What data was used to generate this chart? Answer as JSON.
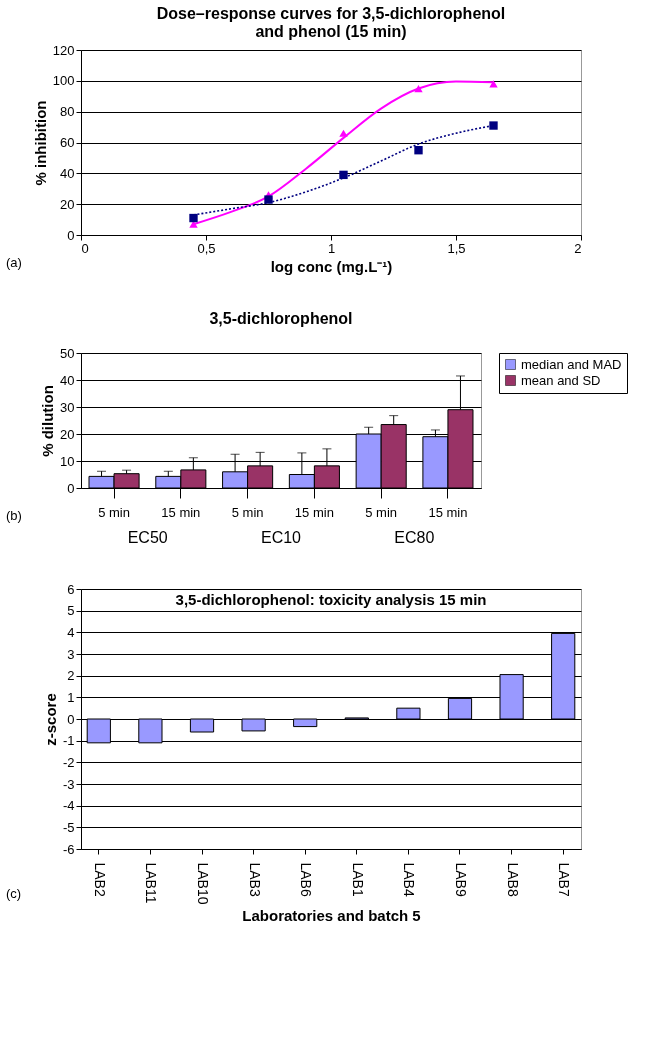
{
  "chart_data": [
    {
      "type": "scatter",
      "title": "Dose–response curves for 3,5-dichlorophenol and phenol (15 min)",
      "xlabel": "log conc (mg.L⁻¹)",
      "ylabel": "% inhibition",
      "annotations": [
        "(a)"
      ],
      "xlim": [
        0,
        2
      ],
      "xticks": [
        0,
        {
          "value": 0.5,
          "label": "0,5"
        },
        1,
        {
          "value": 1.5,
          "label": "1,5"
        },
        2
      ],
      "ylim": [
        0,
        120
      ],
      "yticks": [
        0,
        20,
        40,
        60,
        80,
        100,
        120
      ],
      "grid": "y",
      "series": [
        {
          "type": "scatter",
          "marker": "triangle",
          "color": "#ff00ff",
          "x": [
            0.45,
            0.75,
            1.05,
            1.35,
            1.65
          ],
          "values": [
            7,
            26,
            66,
            95,
            98
          ]
        },
        {
          "type": "scatter",
          "marker": "square",
          "color": "#000080",
          "x": [
            0.45,
            0.75,
            1.05,
            1.35,
            1.65
          ],
          "values": [
            11,
            23,
            39,
            55,
            71
          ]
        },
        {
          "type": "line",
          "line_style": "solid",
          "color": "#ff00ff",
          "x": [
            0.45,
            0.6,
            0.75,
            0.9,
            1.05,
            1.2,
            1.35,
            1.5,
            1.65
          ],
          "values": [
            7,
            15,
            25,
            43,
            63,
            82,
            95,
            99.5,
            99
          ]
        },
        {
          "type": "line",
          "line_style": "dotted",
          "color": "#000080",
          "x": [
            0.45,
            0.6,
            0.75,
            0.9,
            1.05,
            1.2,
            1.35,
            1.5,
            1.65
          ],
          "values": [
            13,
            17,
            21,
            28,
            37,
            48,
            59,
            66,
            71
          ]
        }
      ]
    },
    {
      "type": "bar",
      "title": "3,5-dichlorophenol",
      "ylabel": "% dilution",
      "annotations": [
        "(b)",
        "EC50",
        "EC10",
        "EC80"
      ],
      "categories": [
        "5 min",
        "15 min",
        "5 min",
        "15 min",
        "5 min",
        "15 min"
      ],
      "ylim": [
        0,
        50
      ],
      "yticks": [
        0,
        10,
        20,
        30,
        40,
        50
      ],
      "grid": "y",
      "legend": "right",
      "series": [
        {
          "name": "median and MAD",
          "color": "#9999ff",
          "values": [
            4.3,
            4.3,
            6,
            5,
            20,
            19
          ],
          "errors": [
            [
              4.3,
              6.2
            ],
            [
              4.3,
              6.2
            ],
            [
              6,
              12.5
            ],
            [
              5,
              13
            ],
            [
              20,
              22.5
            ],
            [
              19,
              21.5
            ]
          ]
        },
        {
          "name": "mean and SD",
          "color": "#993366",
          "values": [
            5.3,
            6.7,
            8.2,
            8.2,
            23.5,
            29
          ],
          "errors": [
            [
              5.3,
              6.6
            ],
            [
              6.7,
              11.2
            ],
            [
              8.2,
              13.2
            ],
            [
              8.2,
              14.5
            ],
            [
              23.5,
              26.8
            ],
            [
              29,
              41.5
            ]
          ]
        }
      ]
    },
    {
      "type": "bar",
      "title": "3,5-dichlorophenol: toxicity analysis 15 min",
      "xlabel": "Laboratories and batch 5",
      "ylabel": "z-score",
      "annotations": [
        "(c)"
      ],
      "categories": [
        "LAB2",
        "LAB11",
        "LAB10",
        "LAB3",
        "LAB6",
        "LAB1",
        "LAB4",
        "LAB9",
        "LAB8",
        "LAB7"
      ],
      "ylim": [
        -6,
        6
      ],
      "yticks": [
        -6,
        -5,
        -4,
        -3,
        -2,
        -1,
        0,
        1,
        2,
        3,
        4,
        5,
        6
      ],
      "grid": "y",
      "color": "#9999ff",
      "values": [
        -1.1,
        -1.1,
        -0.6,
        -0.55,
        -0.35,
        0.05,
        0.5,
        0.95,
        2.05,
        3.95
      ]
    }
  ]
}
